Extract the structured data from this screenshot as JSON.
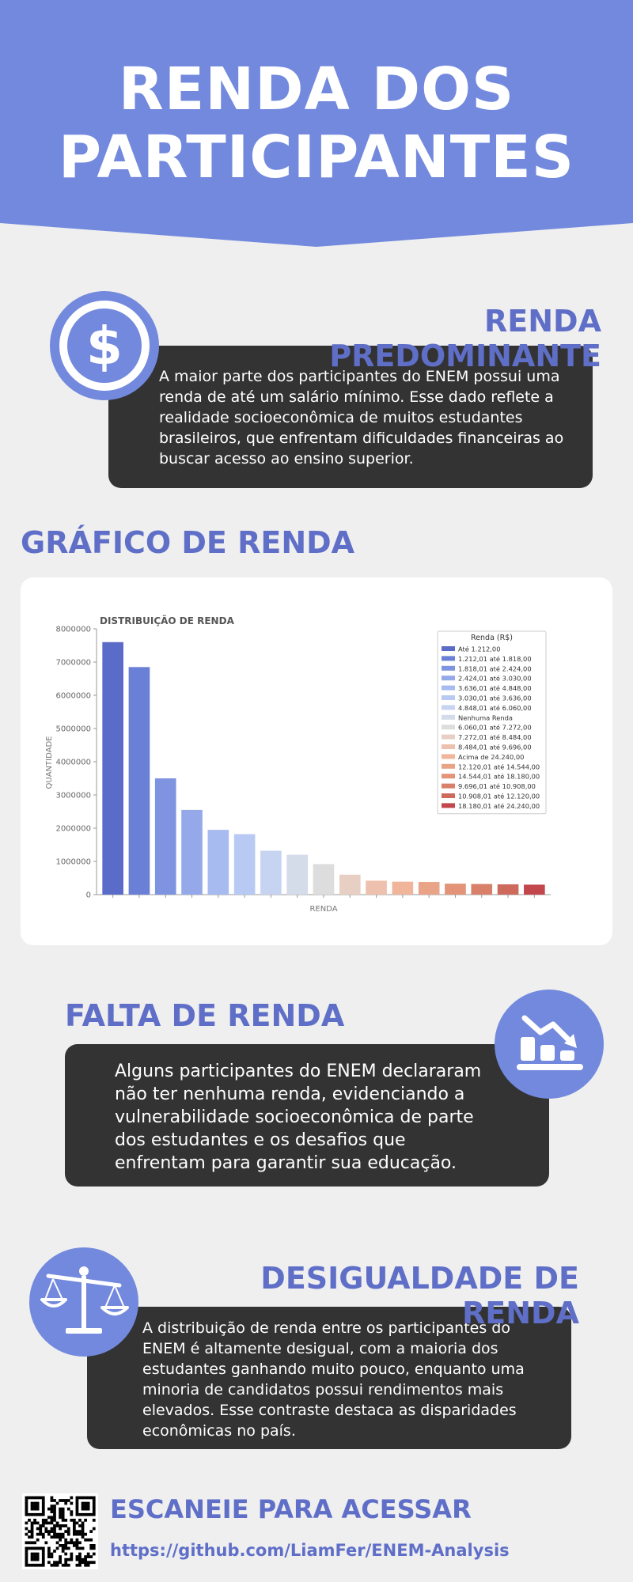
{
  "hero": {
    "title_line1": "RENDA DOS",
    "title_line2": "PARTICIPANTES",
    "band_color": "#7289dd"
  },
  "section_predominante": {
    "title": "RENDA PREDOMINANTE",
    "icon": "dollar-icon",
    "text": "A maior parte dos participantes do ENEM possui uma renda de até um salário mínimo. Esse dado reflete a realidade socioeconômica de muitos estudantes brasileiros, que enfrentam dificuldades financeiras ao buscar acesso ao ensino superior."
  },
  "section_grafico": {
    "title": "GRÁFICO DE RENDA"
  },
  "chart_data": {
    "type": "bar",
    "title": "DISTRIBUIÇÃO DE RENDA",
    "xlabel": "RENDA",
    "ylabel": "QUANTIDADE",
    "ylim": [
      0,
      8000000
    ],
    "yticks": [
      "0",
      "1000000",
      "2000000",
      "3000000",
      "4000000",
      "5000000",
      "6000000",
      "7000000",
      "8000000"
    ],
    "grid": false,
    "legend_title": "Renda (R$)",
    "legend_position": "top-right",
    "categories": [
      "Até 1.212,00",
      "1.212,01 até 1.818,00",
      "1.818,01 até 2.424,00",
      "2.424,01 até 3.030,00",
      "3.636,01 até 4.848,00",
      "3.030,01 até 3.636,00",
      "4.848,01 até 6.060,00",
      "Nenhuma Renda",
      "6.060,01 até 7.272,00",
      "7.272,01 até 8.484,00",
      "8.484,01 até 9.696,00",
      "Acima de 24.240,00",
      "12.120,01 até 14.544,00",
      "14.544,01 até 18.180,00",
      "9.696,01 até 10.908,00",
      "10.908,01 até 12.120,00",
      "18.180,01 até 24.240,00"
    ],
    "values": [
      7600000,
      6850000,
      3500000,
      2550000,
      1950000,
      1820000,
      1320000,
      1200000,
      920000,
      600000,
      420000,
      390000,
      380000,
      330000,
      320000,
      310000,
      300000
    ],
    "colors": [
      "#5a6bc8",
      "#6a7fd6",
      "#7f94e0",
      "#95a9ea",
      "#a8bbf0",
      "#b8c9f3",
      "#c7d4f1",
      "#d4dbe9",
      "#dddddd",
      "#e8cfc3",
      "#edc1ad",
      "#f0b59b",
      "#e9a488",
      "#e29378",
      "#d8806a",
      "#cd6a5c",
      "#c2474d"
    ]
  },
  "section_falta": {
    "title": "FALTA DE RENDA",
    "icon": "chart-down-icon",
    "text": "Alguns participantes do ENEM declararam não ter nenhuma renda, evidenciando a vulnerabilidade socioeconômica de parte dos estudantes e os desafios que enfrentam para garantir sua educação."
  },
  "section_desigualdade": {
    "title": "DESIGUALDADE DE RENDA",
    "icon": "scale-icon",
    "text": "A distribuição de renda entre os participantes do ENEM é altamente desigual, com a maioria dos estudantes ganhando muito pouco, enquanto uma minoria de candidatos possui rendimentos mais elevados. Esse contraste destaca as disparidades econômicas no país."
  },
  "footer": {
    "title": "ESCANEIE PARA ACESSAR",
    "link": "https://github.com/LiamFer/ENEM-Analysis",
    "icon": "qr-code-icon"
  }
}
